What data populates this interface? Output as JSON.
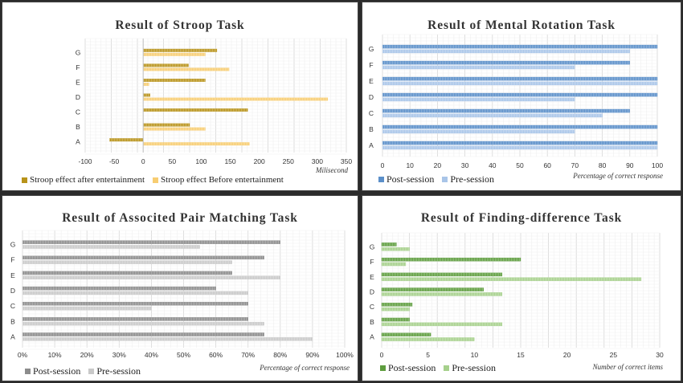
{
  "chart_data": [
    {
      "type": "bar",
      "title": "Result of Stroop Task",
      "categories": [
        "A",
        "B",
        "C",
        "D",
        "E",
        "F",
        "G"
      ],
      "series": [
        {
          "name": "Stroop effect after entertainment",
          "color": "#b8931a",
          "values": [
            -58,
            80,
            180,
            12,
            107,
            78,
            127
          ]
        },
        {
          "name": "Stroop effect Before entertainment",
          "color": "#f7cd72",
          "values": [
            183,
            107,
            0,
            318,
            10,
            148,
            107
          ]
        }
      ],
      "xlabel": "Milisecond",
      "xlim": [
        -100,
        350
      ],
      "xticks": [
        -100,
        -50,
        0,
        50,
        100,
        150,
        200,
        250,
        300,
        350
      ],
      "xtick_labels": [
        "-100",
        "-50",
        "0",
        "50",
        "100",
        "150",
        "200",
        "250",
        "300",
        "350"
      ],
      "grid": true,
      "legend_position": "bottom"
    },
    {
      "type": "bar",
      "title": "Result of Mental Rotation Task",
      "categories": [
        "A",
        "B",
        "C",
        "D",
        "E",
        "F",
        "G"
      ],
      "series": [
        {
          "name": "Post-session",
          "color": "#5b8fc9",
          "values": [
            100,
            100,
            90,
            100,
            100,
            90,
            100
          ]
        },
        {
          "name": "Pre-session",
          "color": "#a9c5e8",
          "values": [
            100,
            70,
            80,
            70,
            100,
            70,
            90
          ]
        }
      ],
      "xlabel": "Percentage of correct response",
      "xlim": [
        0,
        100
      ],
      "xticks": [
        0,
        10,
        20,
        30,
        40,
        50,
        60,
        70,
        80,
        90,
        100
      ],
      "xtick_labels": [
        "0",
        "10",
        "20",
        "30",
        "40",
        "50",
        "60",
        "70",
        "80",
        "90",
        "100"
      ],
      "grid": true,
      "legend_position": "bottom"
    },
    {
      "type": "bar",
      "title": "Result of Associted Pair Matching Task",
      "categories": [
        "A",
        "B",
        "C",
        "D",
        "E",
        "F",
        "G"
      ],
      "series": [
        {
          "name": "Post-session",
          "color": "#8c8c8c",
          "values": [
            75,
            70,
            70,
            60,
            65,
            75,
            80
          ]
        },
        {
          "name": "Pre-session",
          "color": "#c9c9c9",
          "values": [
            90,
            75,
            40,
            70,
            80,
            65,
            55
          ]
        }
      ],
      "xlabel": "Percentage of correct response",
      "xlim": [
        0,
        100
      ],
      "xticks": [
        0,
        10,
        20,
        30,
        40,
        50,
        60,
        70,
        80,
        90,
        100
      ],
      "xtick_labels": [
        "0%",
        "10%",
        "20%",
        "30%",
        "40%",
        "50%",
        "60%",
        "70%",
        "80%",
        "90%",
        "100%"
      ],
      "grid": true,
      "legend_position": "bottom"
    },
    {
      "type": "bar",
      "title": "Result of Finding-difference Task",
      "categories": [
        "A",
        "B",
        "C",
        "D",
        "E",
        "F",
        "G"
      ],
      "series": [
        {
          "name": "Post-session",
          "color": "#5e9d3e",
          "values": [
            5.3,
            3,
            3.3,
            11,
            13,
            15,
            1.6
          ]
        },
        {
          "name": "Pre-session",
          "color": "#a6d08c",
          "values": [
            10,
            13,
            3,
            13,
            28,
            2.6,
            3
          ]
        }
      ],
      "xlabel": "Number of correct items",
      "xlim": [
        0,
        30
      ],
      "xticks": [
        0,
        5,
        10,
        15,
        20,
        25,
        30
      ],
      "xtick_labels": [
        "0",
        "5",
        "10",
        "15",
        "20",
        "25",
        "30"
      ],
      "grid": true,
      "legend_position": "bottom"
    }
  ]
}
